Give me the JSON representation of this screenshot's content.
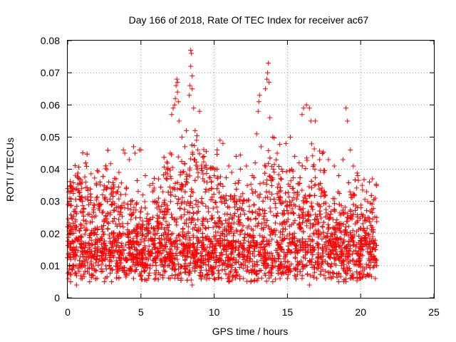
{
  "chart_data": {
    "type": "scatter",
    "title": "Day 166 of 2018, Rate Of TEC Index for receiver ac67",
    "xlabel": "GPS time / hours",
    "ylabel": "ROTI / TECUs",
    "xlim": [
      0,
      25
    ],
    "ylim": [
      0,
      0.08
    ],
    "x_ticks": [
      0,
      5,
      10,
      15,
      20,
      25
    ],
    "x_tick_labels": [
      "0",
      "5",
      "10",
      "15",
      "20",
      "25"
    ],
    "y_ticks": [
      0,
      0.01,
      0.02,
      0.03,
      0.04,
      0.05,
      0.06,
      0.07,
      0.08
    ],
    "y_tick_labels": [
      "0",
      "0.01",
      "0.02",
      "0.03",
      "0.04",
      "0.05",
      "0.06",
      "0.07",
      "0.08"
    ],
    "grid": true,
    "marker": "plus",
    "color": "#ff0000",
    "x_data_range": [
      0,
      21.1
    ],
    "points": [
      [
        0.0,
        0.034
      ],
      [
        0.1,
        0.031
      ],
      [
        0.2,
        0.022
      ],
      [
        0.3,
        0.015
      ],
      [
        0.5,
        0.012
      ],
      [
        0.8,
        0.01
      ],
      [
        1.0,
        0.03
      ],
      [
        1.2,
        0.031
      ],
      [
        1.5,
        0.026
      ],
      [
        1.8,
        0.029
      ],
      [
        2.2,
        0.036
      ],
      [
        2.5,
        0.031
      ],
      [
        2.8,
        0.036
      ],
      [
        3.0,
        0.034
      ],
      [
        3.3,
        0.037
      ],
      [
        3.5,
        0.039
      ],
      [
        3.8,
        0.046
      ],
      [
        3.9,
        0.045
      ],
      [
        4.2,
        0.043
      ],
      [
        4.5,
        0.047
      ],
      [
        4.6,
        0.045
      ],
      [
        4.9,
        0.046
      ],
      [
        5.0,
        0.046
      ],
      [
        5.3,
        0.038
      ],
      [
        5.6,
        0.035
      ],
      [
        5.8,
        0.033
      ],
      [
        6.2,
        0.031
      ],
      [
        6.5,
        0.033
      ],
      [
        6.8,
        0.04
      ],
      [
        7.0,
        0.045
      ],
      [
        7.1,
        0.057
      ],
      [
        7.2,
        0.059
      ],
      [
        7.3,
        0.06
      ],
      [
        7.35,
        0.062
      ],
      [
        7.4,
        0.066
      ],
      [
        7.45,
        0.068
      ],
      [
        7.5,
        0.067
      ],
      [
        7.5,
        0.064
      ],
      [
        7.55,
        0.061
      ],
      [
        7.6,
        0.055
      ],
      [
        7.8,
        0.05
      ],
      [
        8.0,
        0.047
      ],
      [
        8.1,
        0.052
      ],
      [
        8.3,
        0.063
      ],
      [
        8.35,
        0.066
      ],
      [
        8.4,
        0.072
      ],
      [
        8.4,
        0.077
      ],
      [
        8.45,
        0.076
      ],
      [
        8.5,
        0.069
      ],
      [
        8.5,
        0.065
      ],
      [
        8.6,
        0.059
      ],
      [
        8.7,
        0.052
      ],
      [
        8.8,
        0.049
      ],
      [
        9.0,
        0.058
      ],
      [
        9.3,
        0.044
      ],
      [
        9.5,
        0.04
      ],
      [
        9.8,
        0.036
      ],
      [
        10.0,
        0.038
      ],
      [
        10.2,
        0.046
      ],
      [
        10.4,
        0.049
      ],
      [
        10.6,
        0.048
      ],
      [
        11.0,
        0.041
      ],
      [
        11.2,
        0.039
      ],
      [
        11.5,
        0.044
      ],
      [
        11.8,
        0.04
      ],
      [
        12.2,
        0.041
      ],
      [
        12.6,
        0.038
      ],
      [
        12.8,
        0.042
      ],
      [
        12.9,
        0.051
      ],
      [
        13.0,
        0.058
      ],
      [
        13.05,
        0.061
      ],
      [
        13.1,
        0.063
      ],
      [
        13.2,
        0.047
      ],
      [
        13.5,
        0.065
      ],
      [
        13.6,
        0.068
      ],
      [
        13.65,
        0.07
      ],
      [
        13.7,
        0.073
      ],
      [
        13.75,
        0.067
      ],
      [
        13.8,
        0.056
      ],
      [
        14.0,
        0.05
      ],
      [
        14.3,
        0.045
      ],
      [
        14.6,
        0.04
      ],
      [
        14.9,
        0.048
      ],
      [
        15.2,
        0.05
      ],
      [
        15.5,
        0.044
      ],
      [
        15.8,
        0.042
      ],
      [
        16.0,
        0.057
      ],
      [
        16.1,
        0.059
      ],
      [
        16.3,
        0.06
      ],
      [
        16.5,
        0.059
      ],
      [
        16.6,
        0.055
      ],
      [
        16.9,
        0.055
      ],
      [
        17.2,
        0.043
      ],
      [
        17.5,
        0.039
      ],
      [
        17.8,
        0.043
      ],
      [
        18.2,
        0.041
      ],
      [
        18.5,
        0.038
      ],
      [
        18.8,
        0.043
      ],
      [
        19.0,
        0.059
      ],
      [
        19.1,
        0.055
      ],
      [
        19.3,
        0.046
      ],
      [
        19.5,
        0.041
      ],
      [
        19.8,
        0.038
      ],
      [
        20.1,
        0.035
      ],
      [
        20.4,
        0.033
      ],
      [
        20.6,
        0.036
      ],
      [
        20.8,
        0.037
      ],
      [
        21.0,
        0.031
      ],
      [
        21.1,
        0.025
      ],
      [
        0.2,
        0.005
      ],
      [
        0.6,
        0.004
      ],
      [
        1.0,
        0.006
      ],
      [
        1.5,
        0.005
      ],
      [
        2.0,
        0.006
      ],
      [
        2.5,
        0.005
      ],
      [
        3.0,
        0.005
      ],
      [
        3.5,
        0.006
      ],
      [
        4.0,
        0.007
      ],
      [
        4.5,
        0.006
      ],
      [
        5.0,
        0.007
      ],
      [
        5.5,
        0.006
      ],
      [
        6.0,
        0.006
      ],
      [
        6.5,
        0.007
      ],
      [
        7.0,
        0.006
      ],
      [
        7.5,
        0.007
      ],
      [
        8.0,
        0.008
      ],
      [
        8.5,
        0.004
      ],
      [
        9.0,
        0.007
      ],
      [
        9.5,
        0.007
      ],
      [
        10.0,
        0.006
      ],
      [
        10.5,
        0.006
      ],
      [
        11.0,
        0.005
      ],
      [
        11.5,
        0.007
      ],
      [
        12.0,
        0.006
      ],
      [
        12.5,
        0.005
      ],
      [
        13.0,
        0.006
      ],
      [
        13.5,
        0.007
      ],
      [
        14.0,
        0.005
      ],
      [
        14.5,
        0.006
      ],
      [
        15.0,
        0.006
      ],
      [
        15.5,
        0.007
      ],
      [
        16.0,
        0.006
      ],
      [
        16.5,
        0.004
      ],
      [
        17.0,
        0.006
      ],
      [
        17.5,
        0.007
      ],
      [
        18.0,
        0.006
      ],
      [
        18.5,
        0.005
      ],
      [
        19.0,
        0.005
      ],
      [
        19.5,
        0.006
      ],
      [
        20.0,
        0.006
      ],
      [
        20.5,
        0.007
      ],
      [
        21.0,
        0.006
      ]
    ]
  }
}
